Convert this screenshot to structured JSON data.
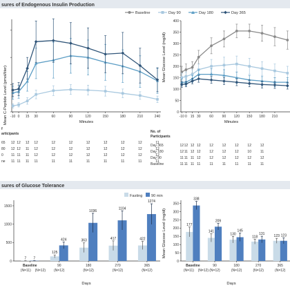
{
  "sections": {
    "top_title": "sures of Endogenous Insulin Production",
    "bottom_title": "sures of Glucose Tolerance"
  },
  "legend_top": [
    "Baseline",
    "Day 90",
    "Day 180",
    "Day 365"
  ],
  "legend_bottom": [
    "Fasting",
    "90 min"
  ],
  "colors": {
    "baseline": "#8a8a8a",
    "day90": "#a8c8df",
    "day180": "#5a9cc4",
    "day365": "#2f5478",
    "fasting": "#c9dbe8",
    "min90": "#4f7fbf"
  },
  "tables": {
    "left": {
      "header": [
        "f",
        "articipants"
      ],
      "rows": [
        {
          "label": "65",
          "values": [
            "12",
            "12",
            "12",
            "12",
            "12",
            "12",
            "12",
            "12",
            "12",
            "12",
            "11"
          ]
        },
        {
          "label": "80",
          "values": [
            "12",
            "12",
            "11",
            "12",
            "12",
            "12",
            "12",
            "12",
            "12",
            "12",
            "12"
          ]
        },
        {
          "label": "0",
          "values": [
            "11",
            "11",
            "11",
            "12",
            "12",
            "12",
            "12",
            "12",
            "12",
            "12",
            "12"
          ]
        },
        {
          "label": "ne",
          "values": [
            "11",
            "11",
            "11",
            "11",
            "11",
            "11",
            "11",
            "11",
            "11",
            "11",
            "11"
          ]
        }
      ]
    },
    "right": {
      "header": [
        "No. of",
        "Participants"
      ],
      "rows": [
        {
          "label": "Day 365",
          "values": [
            "12",
            "12",
            "12",
            "12",
            "12",
            "12",
            "12",
            "12",
            "12"
          ]
        },
        {
          "label": "Day 180",
          "values": [
            "12",
            "11",
            "12",
            "12",
            "12",
            "12",
            "12",
            "10",
            "11"
          ]
        },
        {
          "label": "Day 90",
          "values": [
            "11",
            "11",
            "11",
            "12",
            "12",
            "12",
            "12",
            "12",
            "12"
          ]
        },
        {
          "label": "Baseline",
          "values": [
            "11",
            "11",
            "11",
            "11",
            "11",
            "11",
            "11",
            "11",
            "11"
          ]
        }
      ]
    }
  },
  "chart_data": [
    {
      "type": "line",
      "id": "cpeptide",
      "xlabel": "Minutes",
      "ylabel": "Mean C-Peptide Level (pmol/liter)",
      "ylabel_visible": "Mean C-Peptide Level (pmol/liter)",
      "x": [
        -10,
        0,
        15,
        30,
        60,
        90,
        120,
        150,
        180,
        210,
        240
      ],
      "x_ticks": [
        "-10",
        "0",
        "15",
        "30",
        "60",
        "90",
        "120",
        "150",
        "180",
        "210",
        "240"
      ],
      "ylim": [
        0,
        1700
      ],
      "series": [
        {
          "name": "Day 90",
          "color": "#a8c8df",
          "values": [
            110,
            130,
            200,
            320,
            390,
            410,
            400,
            380,
            340,
            300,
            230
          ],
          "err": [
            40,
            40,
            60,
            80,
            90,
            90,
            90,
            90,
            80,
            70,
            60
          ]
        },
        {
          "name": "Day 180",
          "color": "#5a9cc4",
          "values": [
            350,
            370,
            560,
            890,
            950,
            1030,
            1000,
            910,
            840,
            740,
            570
          ],
          "err": [
            120,
            120,
            180,
            280,
            330,
            320,
            320,
            330,
            300,
            290,
            230
          ]
        },
        {
          "name": "Day 365",
          "color": "#2f5478",
          "values": [
            400,
            420,
            800,
            1290,
            1310,
            1260,
            1170,
            1060,
            1080,
            850,
            590
          ],
          "err": [
            120,
            120,
            200,
            380,
            400,
            380,
            370,
            340,
            380,
            320,
            220
          ]
        }
      ]
    },
    {
      "type": "line",
      "id": "glucose",
      "xlabel": "Minutes",
      "ylabel": "Mean Glucose Level (mg/dl)",
      "x": [
        -10,
        0,
        15,
        30,
        60,
        90,
        120,
        150,
        180,
        210,
        240
      ],
      "x_ticks": [
        "-10",
        "0",
        "15",
        "30",
        "60",
        "90",
        "120",
        "150",
        "180",
        "210"
      ],
      "y_ticks": [
        0,
        50,
        100,
        150,
        200,
        250,
        300,
        350,
        400
      ],
      "ylim": [
        0,
        400
      ],
      "series": [
        {
          "name": "Baseline",
          "color": "#8a8a8a",
          "values": [
            175,
            185,
            195,
            240,
            290,
            320,
            355,
            355,
            345,
            330,
            315
          ],
          "err": [
            25,
            25,
            25,
            30,
            35,
            35,
            30,
            30,
            35,
            40,
            40
          ]
        },
        {
          "name": "Day 90",
          "color": "#a8c8df",
          "values": [
            150,
            155,
            165,
            185,
            200,
            205,
            210,
            200,
            190,
            180,
            170
          ],
          "err": [
            20,
            20,
            20,
            25,
            30,
            35,
            35,
            35,
            30,
            30,
            30
          ]
        },
        {
          "name": "Day 180",
          "color": "#5a9cc4",
          "values": [
            130,
            130,
            145,
            165,
            165,
            160,
            150,
            140,
            135,
            130,
            130
          ],
          "err": [
            15,
            15,
            15,
            20,
            25,
            25,
            25,
            20,
            20,
            20,
            20
          ]
        },
        {
          "name": "Day 365",
          "color": "#2f5478",
          "values": [
            120,
            122,
            135,
            145,
            140,
            135,
            130,
            125,
            120,
            118,
            115
          ],
          "err": [
            12,
            12,
            12,
            15,
            15,
            15,
            15,
            15,
            15,
            15,
            15
          ]
        }
      ]
    },
    {
      "type": "bar",
      "id": "cpeptide_bars",
      "xlabel": "Days",
      "categories": [
        "Baseline",
        "90",
        "180",
        "270",
        "365"
      ],
      "n_labels": [
        [
          "(N=11)",
          "(N=12)"
        ],
        [
          "(N=12)"
        ],
        [
          "(N=12)"
        ],
        [
          "(N=12)"
        ],
        [
          "(N=12)"
        ]
      ],
      "y_ticks": [
        0,
        500,
        1000,
        1500
      ],
      "ylim": [
        0,
        1650
      ],
      "series": [
        {
          "name": "Fasting",
          "color": "#c9dbe8",
          "values": [
            7,
            125,
            363,
            417,
            422
          ],
          "err": [
            3,
            40,
            130,
            130,
            110
          ]
        },
        {
          "name": "90 min",
          "color": "#4f7fbf",
          "values": [
            7,
            424,
            1036,
            1104,
            1274
          ],
          "err": [
            3,
            90,
            260,
            260,
            280
          ]
        }
      ]
    },
    {
      "type": "bar",
      "id": "glucose_bars",
      "xlabel": "Days",
      "ylabel": "Mean Glucose Level (mg/dl)",
      "categories": [
        "Baseline",
        "90",
        "180",
        "270",
        "365"
      ],
      "n_labels": [
        [
          "(N=11)",
          "(N=12)"
        ],
        [
          "(N=12)"
        ],
        [
          "(N=12)"
        ],
        [
          "(N=12)"
        ],
        [
          "(N=12)"
        ]
      ],
      "y_ticks": [
        0,
        50,
        100,
        150,
        200,
        250,
        300,
        350
      ],
      "ylim": [
        0,
        370
      ],
      "series": [
        {
          "name": "Fasting",
          "color": "#c9dbe8",
          "values": [
            177,
            141,
            130,
            118,
            123
          ],
          "err": [
            30,
            25,
            20,
            15,
            15
          ]
        },
        {
          "name": "90 min",
          "color": "#4f7fbf",
          "values": [
            338,
            209,
            145,
            131,
            123
          ],
          "err": [
            25,
            20,
            25,
            20,
            18
          ]
        }
      ]
    }
  ]
}
